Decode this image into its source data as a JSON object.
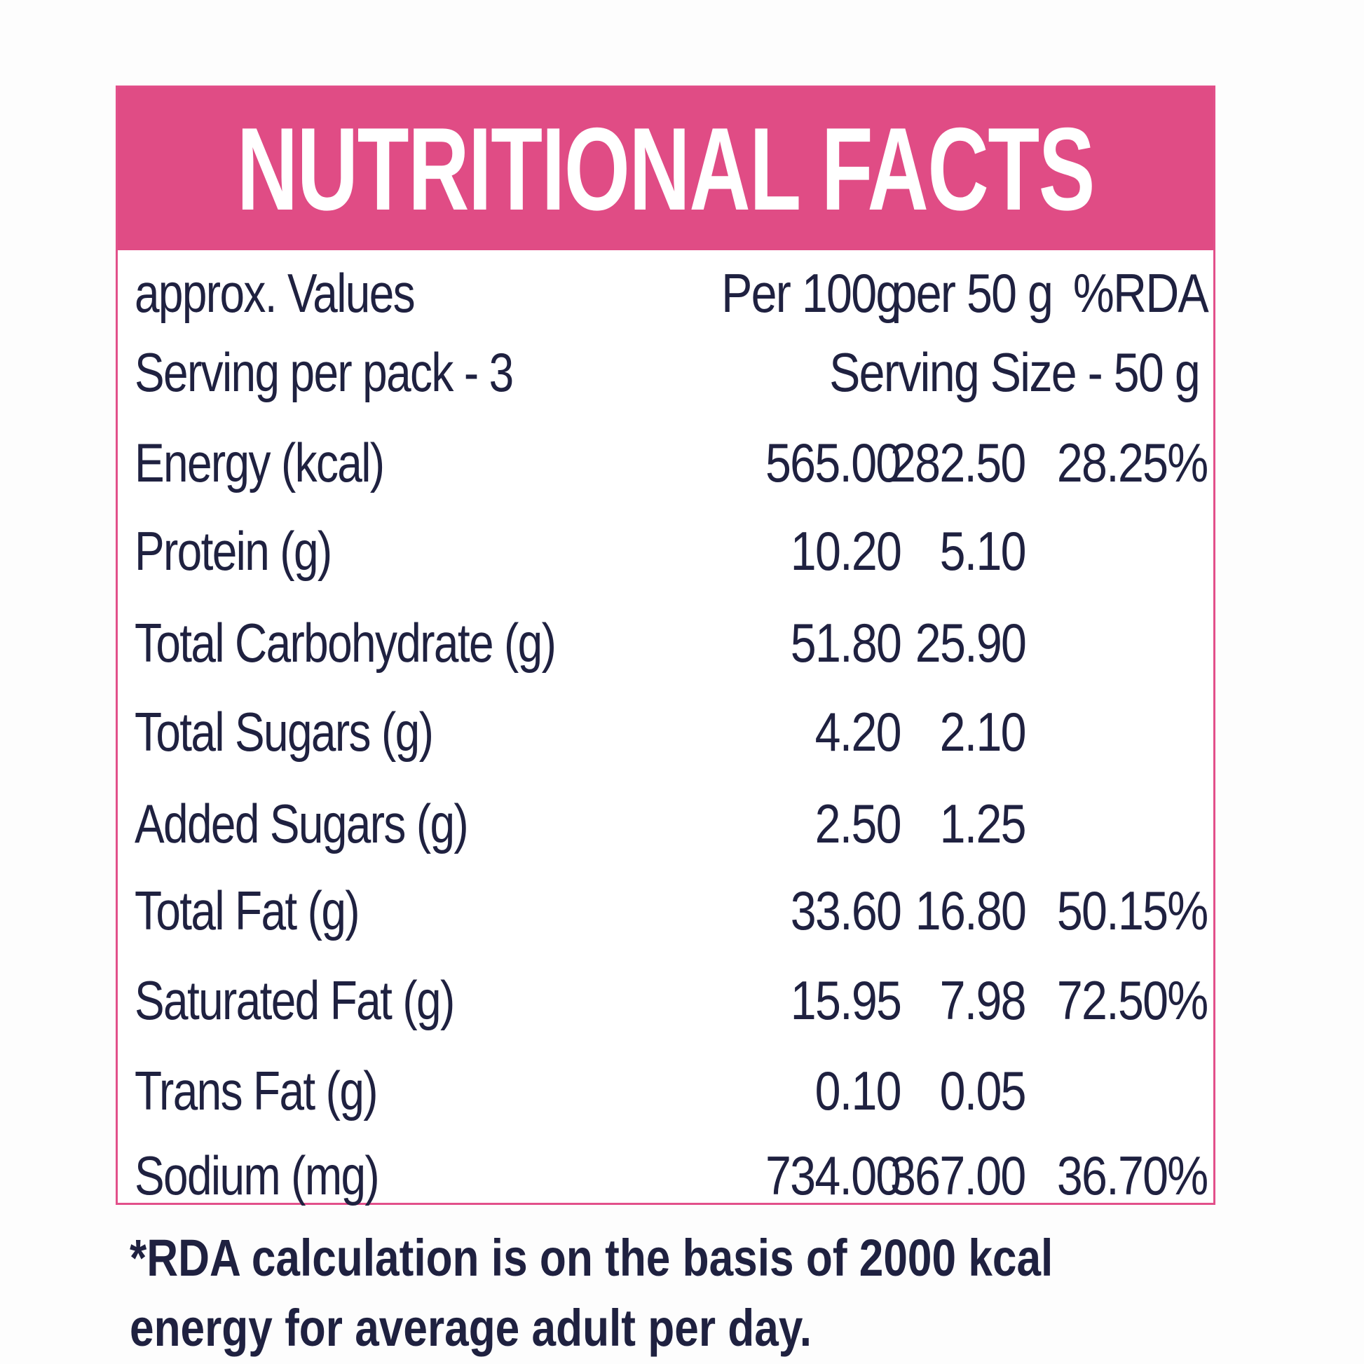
{
  "title": "NUTRITIONAL FACTS",
  "header_row": {
    "label": "approx. Values",
    "per100": "Per 100g",
    "per50": "per 50 g",
    "rda": "%RDA"
  },
  "serving_row": {
    "servings": "Serving per pack - 3",
    "size": "Serving Size - 50 g"
  },
  "nutrients": [
    {
      "name": "Energy (kcal)",
      "per100": "565.00",
      "per50": "282.50",
      "rda": "28.25%"
    },
    {
      "name": "Protein (g)",
      "per100": "10.20",
      "per50": "5.10",
      "rda": ""
    },
    {
      "name": "Total Carbohydrate (g)",
      "per100": "51.80",
      "per50": "25.90",
      "rda": ""
    },
    {
      "name": "Total Sugars (g)",
      "per100": "4.20",
      "per50": "2.10",
      "rda": ""
    },
    {
      "name": "Added Sugars (g)",
      "per100": "2.50",
      "per50": "1.25",
      "rda": ""
    },
    {
      "name": "Total Fat (g)",
      "per100": "33.60",
      "per50": "16.80",
      "rda": "50.15%"
    },
    {
      "name": "Saturated Fat (g)",
      "per100": "15.95",
      "per50": "7.98",
      "rda": "72.50%"
    },
    {
      "name": "Trans Fat (g)",
      "per100": "0.10",
      "per50": "0.05",
      "rda": ""
    },
    {
      "name": "Sodium (mg)",
      "per100": "734.00",
      "per50": "367.00",
      "rda": "36.70%"
    }
  ],
  "footnote": "*RDA calculation is on the basis of 2000 kcal energy for average adult per day.",
  "colors": {
    "accent": "#e04c85",
    "text": "#1f2140"
  }
}
